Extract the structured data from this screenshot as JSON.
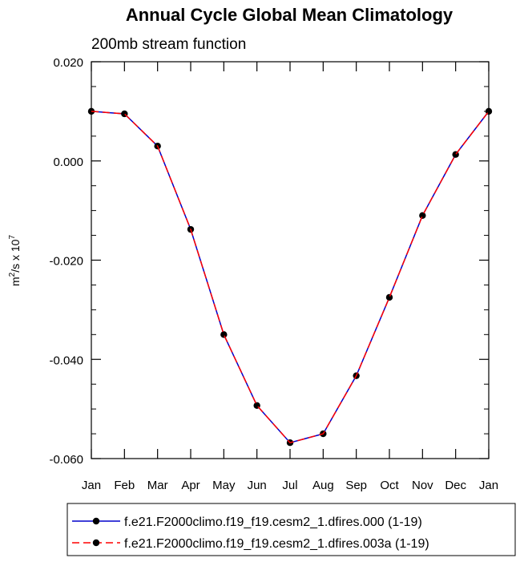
{
  "chart_data": {
    "type": "line",
    "title": "Annual Cycle Global Mean Climatology",
    "subtitle": "200mb stream function",
    "ylabel": {
      "main": "m",
      "sup1": "2",
      "mid": "/s x 10",
      "sup2": "7"
    },
    "categories": [
      "Jan",
      "Feb",
      "Mar",
      "Apr",
      "May",
      "Jun",
      "Jul",
      "Aug",
      "Sep",
      "Oct",
      "Nov",
      "Dec",
      "Jan"
    ],
    "ylim": [
      -0.06,
      0.02
    ],
    "yticks": [
      "0.020",
      "0.000",
      "-0.020",
      "-0.040",
      "-0.060"
    ],
    "series": [
      {
        "name": "f.e21.F2000climo.f19_f19.cesm2_1.dfires.000 (1-19)",
        "color": "#0000cc",
        "dash": "solid",
        "values": [
          0.01,
          0.0095,
          0.003,
          -0.0138,
          -0.035,
          -0.0493,
          -0.0568,
          -0.055,
          -0.0433,
          -0.0275,
          -0.011,
          0.0013,
          0.01
        ]
      },
      {
        "name": "f.e21.F2000climo.f19_f19.cesm2_1.dfires.003a (1-19)",
        "color": "#ff0000",
        "dash": "dashed",
        "values": [
          0.01,
          0.0095,
          0.003,
          -0.0138,
          -0.035,
          -0.0493,
          -0.0568,
          -0.055,
          -0.0433,
          -0.0275,
          -0.011,
          0.0013,
          0.01
        ]
      }
    ],
    "grid": false,
    "legend_position": "bottom"
  }
}
